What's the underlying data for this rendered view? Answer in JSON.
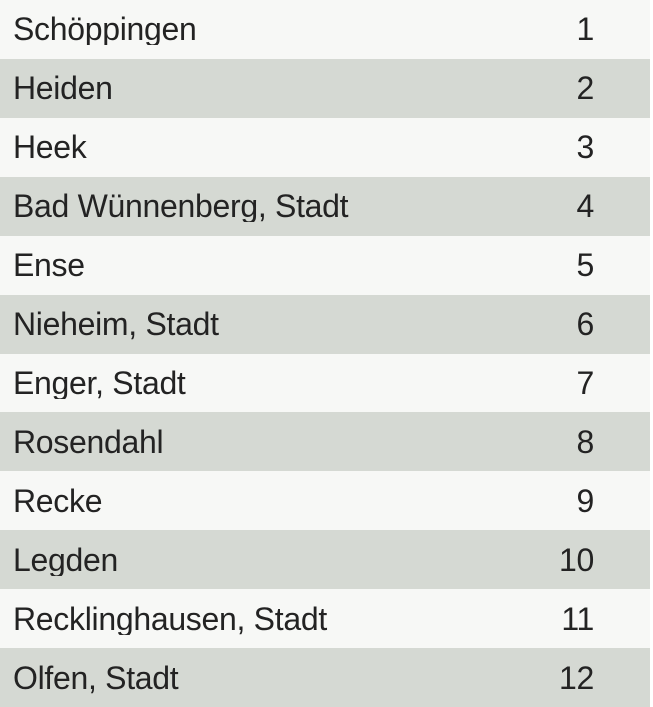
{
  "table": {
    "columns": [
      "municipality",
      "rank"
    ],
    "rows": [
      {
        "name": "Schöppingen",
        "rank": "1"
      },
      {
        "name": "Heiden",
        "rank": "2"
      },
      {
        "name": "Heek",
        "rank": "3"
      },
      {
        "name": "Bad Wünnenberg, Stadt",
        "rank": "4"
      },
      {
        "name": "Ense",
        "rank": "5"
      },
      {
        "name": "Nieheim, Stadt",
        "rank": "6"
      },
      {
        "name": "Enger, Stadt",
        "rank": "7"
      },
      {
        "name": "Rosendahl",
        "rank": "8"
      },
      {
        "name": "Recke",
        "rank": "9"
      },
      {
        "name": "Legden",
        "rank": "10"
      },
      {
        "name": "Recklinghausen, Stadt",
        "rank": "11"
      },
      {
        "name": "Olfen, Stadt",
        "rank": "12"
      }
    ],
    "colors": {
      "row_odd_bg": "#f7f8f6",
      "row_even_bg": "#d5d9d3",
      "text": "#232323",
      "page_bg": "#ffffff"
    }
  },
  "chart_data": {
    "type": "table",
    "columns": [
      "municipality",
      "rank"
    ],
    "rows": [
      [
        "Schöppingen",
        1
      ],
      [
        "Heiden",
        2
      ],
      [
        "Heek",
        3
      ],
      [
        "Bad Wünnenberg, Stadt",
        4
      ],
      [
        "Ense",
        5
      ],
      [
        "Nieheim, Stadt",
        6
      ],
      [
        "Enger, Stadt",
        7
      ],
      [
        "Rosendahl",
        8
      ],
      [
        "Recke",
        9
      ],
      [
        "Legden",
        10
      ],
      [
        "Recklinghausen, Stadt",
        11
      ],
      [
        "Olfen, Stadt",
        12
      ]
    ],
    "title": "",
    "layout_hints": {
      "striped": true,
      "header_visible": false,
      "name_align": "left",
      "rank_align": "right"
    }
  }
}
